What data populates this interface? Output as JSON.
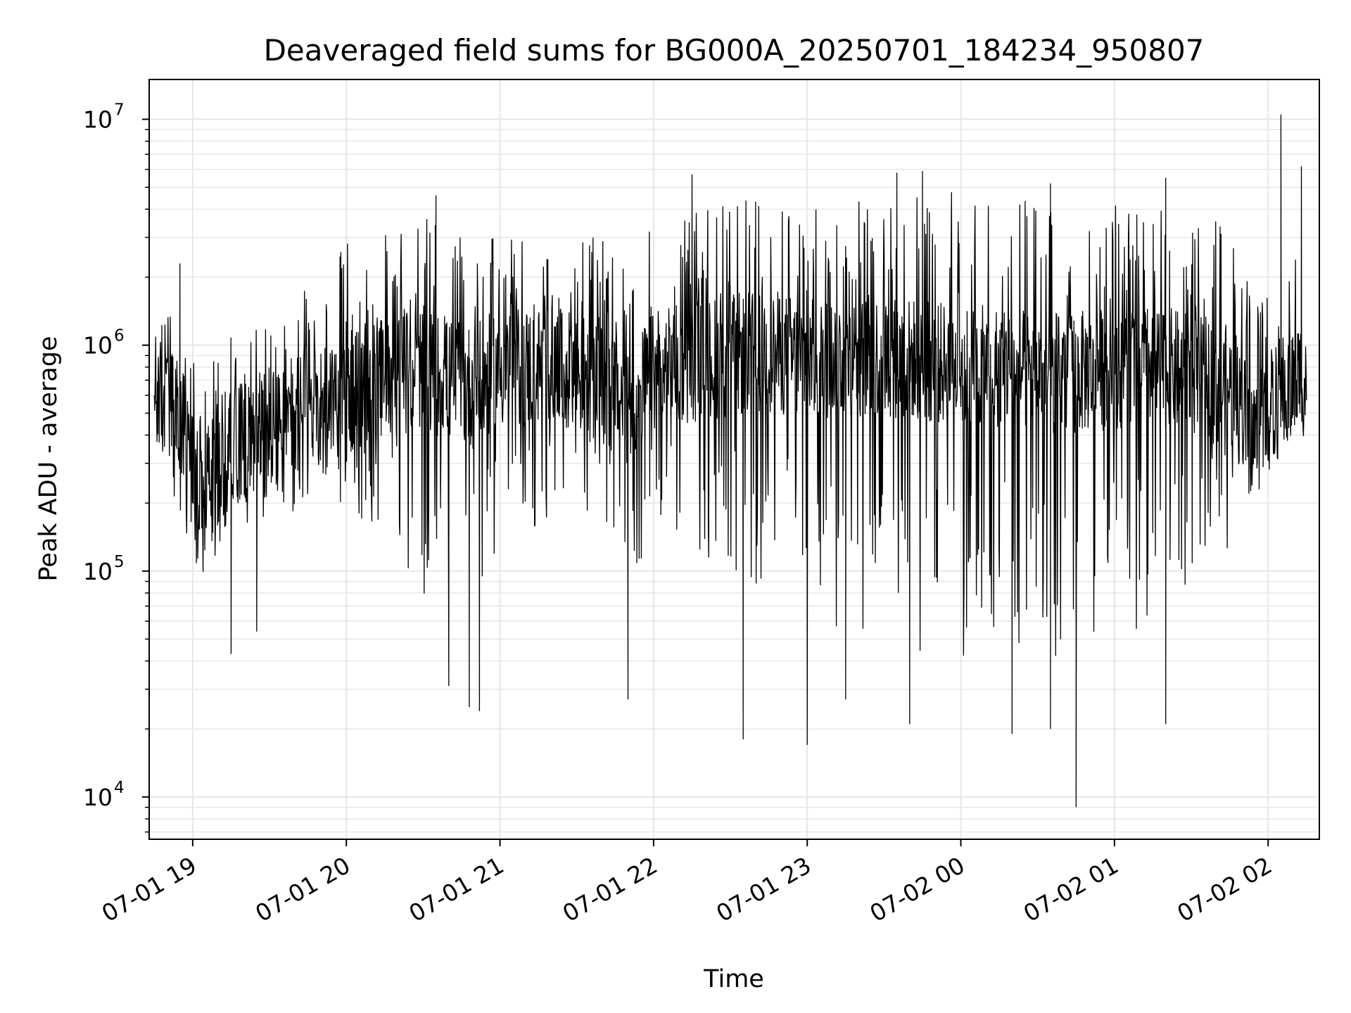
{
  "chart_data": {
    "type": "line",
    "title": "Deaveraged field sums for BG000A_20250701_184234_950807",
    "xlabel": "Time",
    "ylabel": "Peak ADU - average",
    "yscale": "log",
    "ylim": [
      6500,
      15000000
    ],
    "xlim": [
      "2025-07-01 18:43",
      "2025-07-02 02:20"
    ],
    "grid": true,
    "line_color": "#000000",
    "x_ticks": [
      {
        "label": "07-01 19",
        "time": "2025-07-01 19:00"
      },
      {
        "label": "07-01 20",
        "time": "2025-07-01 20:00"
      },
      {
        "label": "07-01 21",
        "time": "2025-07-01 21:00"
      },
      {
        "label": "07-01 22",
        "time": "2025-07-01 22:00"
      },
      {
        "label": "07-01 23",
        "time": "2025-07-01 23:00"
      },
      {
        "label": "07-02 00",
        "time": "2025-07-02 00:00"
      },
      {
        "label": "07-02 01",
        "time": "2025-07-02 01:00"
      },
      {
        "label": "07-02 02",
        "time": "2025-07-02 02:00"
      }
    ],
    "y_ticks": [
      {
        "base": "10",
        "exp": "4",
        "value": 10000
      },
      {
        "base": "10",
        "exp": "5",
        "value": 100000
      },
      {
        "base": "10",
        "exp": "6",
        "value": 1000000
      },
      {
        "base": "10",
        "exp": "7",
        "value": 10000000
      }
    ],
    "series": [
      {
        "x": [
          "2025-07-01 18:45",
          "2025-07-01 18:50",
          "2025-07-01 18:55",
          "2025-07-01 19:00",
          "2025-07-01 19:05",
          "2025-07-01 19:10",
          "2025-07-01 19:15",
          "2025-07-01 19:20",
          "2025-07-01 19:25",
          "2025-07-01 19:30",
          "2025-07-01 19:35",
          "2025-07-01 19:40",
          "2025-07-01 19:45",
          "2025-07-01 19:50",
          "2025-07-01 19:55",
          "2025-07-01 20:00",
          "2025-07-01 20:10",
          "2025-07-01 20:20",
          "2025-07-01 20:30",
          "2025-07-01 20:40",
          "2025-07-01 20:50",
          "2025-07-01 21:00",
          "2025-07-01 21:15",
          "2025-07-01 21:30",
          "2025-07-01 21:40",
          "2025-07-01 21:50",
          "2025-07-01 22:00",
          "2025-07-01 22:15",
          "2025-07-01 22:30",
          "2025-07-01 22:45",
          "2025-07-01 23:00",
          "2025-07-01 23:15",
          "2025-07-01 23:30",
          "2025-07-01 23:45",
          "2025-07-02 00:00",
          "2025-07-02 00:15",
          "2025-07-02 00:30",
          "2025-07-02 00:45",
          "2025-07-02 01:00",
          "2025-07-02 01:15",
          "2025-07-02 01:30",
          "2025-07-02 01:45",
          "2025-07-02 01:55",
          "2025-07-02 02:05",
          "2025-07-02 02:15"
        ],
        "lower": [
          300000,
          250000,
          180000,
          110000,
          80000,
          120000,
          150000,
          130000,
          180000,
          160000,
          150000,
          190000,
          200000,
          180000,
          200000,
          200000,
          150000,
          120000,
          80000,
          60000,
          50000,
          120000,
          150000,
          200000,
          150000,
          80000,
          150000,
          120000,
          100000,
          80000,
          80000,
          50000,
          50000,
          40000,
          40000,
          50000,
          40000,
          40000,
          50000,
          60000,
          80000,
          120000,
          250000,
          350000,
          400000
        ],
        "median": [
          600000,
          550000,
          450000,
          300000,
          250000,
          300000,
          400000,
          350000,
          450000,
          450000,
          400000,
          500000,
          550000,
          550000,
          600000,
          600000,
          700000,
          750000,
          800000,
          700000,
          650000,
          800000,
          800000,
          750000,
          650000,
          550000,
          750000,
          850000,
          900000,
          950000,
          850000,
          900000,
          900000,
          850000,
          800000,
          800000,
          750000,
          750000,
          800000,
          800000,
          750000,
          650000,
          400000,
          600000,
          750000
        ],
        "upper": [
          1400000,
          1400000,
          1200000,
          900000,
          800000,
          900000,
          1100000,
          1100000,
          1300000,
          1500000,
          1300000,
          1500000,
          2000000,
          2500000,
          3000000,
          3000000,
          3000000,
          3500000,
          4000000,
          3000000,
          3000000,
          3000000,
          3000000,
          3000000,
          3000000,
          3000000,
          3500000,
          4000000,
          4500000,
          4500000,
          4000000,
          4500000,
          5000000,
          5000000,
          5000000,
          4500000,
          4500000,
          4500000,
          4500000,
          4000000,
          4000000,
          3500000,
          1500000,
          3000000,
          6000000
        ],
        "spikes_high": [
          {
            "x": "2025-07-01 18:55",
            "y": 2300000
          },
          {
            "x": "2025-07-01 20:35",
            "y": 4600000
          },
          {
            "x": "2025-07-01 22:15",
            "y": 5700000
          },
          {
            "x": "2025-07-01 23:35",
            "y": 5800000
          },
          {
            "x": "2025-07-01 23:45",
            "y": 5900000
          },
          {
            "x": "2025-07-02 00:35",
            "y": 5200000
          },
          {
            "x": "2025-07-02 01:20",
            "y": 5500000
          },
          {
            "x": "2025-07-02 02:05",
            "y": 10500000
          },
          {
            "x": "2025-07-02 02:13",
            "y": 6200000
          }
        ],
        "spikes_low": [
          {
            "x": "2025-07-01 19:15",
            "y": 43000
          },
          {
            "x": "2025-07-01 19:25",
            "y": 54000
          },
          {
            "x": "2025-07-01 20:40",
            "y": 31000
          },
          {
            "x": "2025-07-01 20:48",
            "y": 25000
          },
          {
            "x": "2025-07-01 20:52",
            "y": 24000
          },
          {
            "x": "2025-07-01 21:50",
            "y": 27000
          },
          {
            "x": "2025-07-01 22:35",
            "y": 18000
          },
          {
            "x": "2025-07-01 23:00",
            "y": 17000
          },
          {
            "x": "2025-07-01 23:15",
            "y": 27000
          },
          {
            "x": "2025-07-01 23:40",
            "y": 21000
          },
          {
            "x": "2025-07-02 00:20",
            "y": 19000
          },
          {
            "x": "2025-07-02 00:35",
            "y": 20000
          },
          {
            "x": "2025-07-02 00:45",
            "y": 9000
          },
          {
            "x": "2025-07-02 01:20",
            "y": 21000
          }
        ]
      }
    ]
  }
}
